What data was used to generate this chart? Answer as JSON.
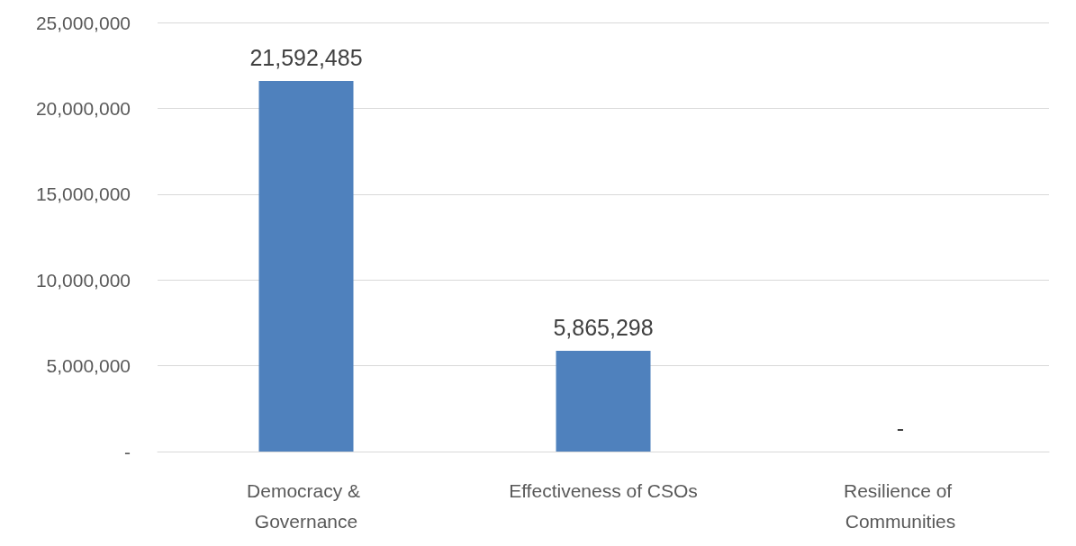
{
  "chart_data": {
    "type": "bar",
    "categories": [
      "Democracy & Governance",
      "Effectiveness of CSOs",
      "Resilience of Communities"
    ],
    "values": [
      21592485,
      5865298,
      0
    ],
    "color": "#4f81bd",
    "value_labels": [
      "21,592,485",
      "5,865,298",
      "-"
    ],
    "ylim": [
      0,
      25000000
    ],
    "yticks": [
      {
        "value": 0,
        "label": "-"
      },
      {
        "value": 5000000,
        "label": "5,000,000"
      },
      {
        "value": 10000000,
        "label": "10,000,000"
      },
      {
        "value": 15000000,
        "label": "15,000,000"
      },
      {
        "value": 20000000,
        "label": "20,000,000"
      },
      {
        "value": 25000000,
        "label": "25,000,000"
      }
    ],
    "grid": "y"
  }
}
